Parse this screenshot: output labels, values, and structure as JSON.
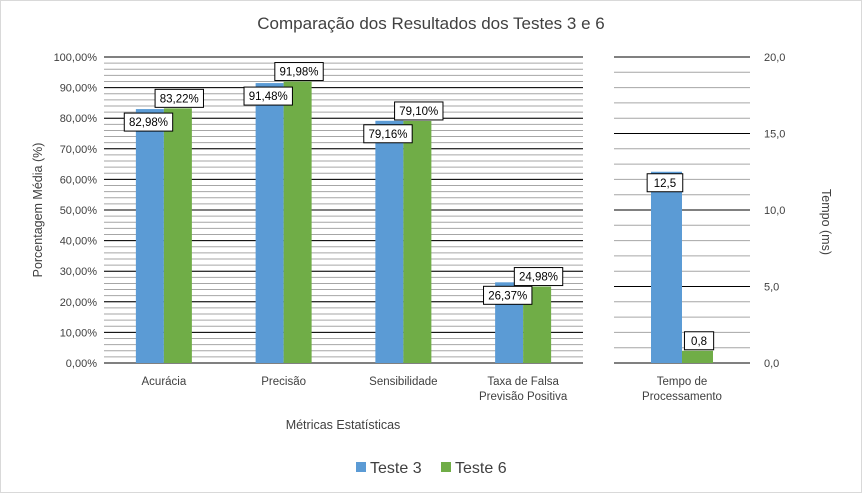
{
  "title": "Comparação dos Resultados dos Testes 3 e 6",
  "legend": [
    {
      "label": "Teste 3",
      "color": "#5b9bd5"
    },
    {
      "label": "Teste 6",
      "color": "#70ad47"
    }
  ],
  "chart_data": [
    {
      "type": "bar",
      "ylabel": "Porcentagem Média (%)",
      "xlabel": "Métricas Estatísticas",
      "ylim": [
        0,
        100
      ],
      "yticks": [
        "0,00%",
        "10,00%",
        "20,00%",
        "30,00%",
        "40,00%",
        "50,00%",
        "60,00%",
        "70,00%",
        "80,00%",
        "90,00%",
        "100,00%"
      ],
      "categories": [
        [
          "Acurácia"
        ],
        [
          "Precisão"
        ],
        [
          "Sensibilidade"
        ],
        [
          "Taxa de Falsa",
          "Previsão Positiva"
        ]
      ],
      "series": [
        {
          "name": "Teste 3",
          "values": [
            82.98,
            91.48,
            79.16,
            26.37
          ],
          "labels": [
            "82,98%",
            "91,48%",
            "79,16%",
            "26,37%"
          ]
        },
        {
          "name": "Teste 6",
          "values": [
            83.22,
            91.98,
            79.1,
            24.98
          ],
          "labels": [
            "83,22%",
            "91,98%",
            "79,10%",
            "24,98%"
          ]
        }
      ],
      "grid": true
    },
    {
      "type": "bar",
      "ylabel": "Tempo (ms)",
      "ylim": [
        0,
        20
      ],
      "yticks": [
        "0,0",
        "5,0",
        "10,0",
        "15,0",
        "20,0"
      ],
      "categories": [
        [
          "Tempo de",
          "Processamento"
        ]
      ],
      "series": [
        {
          "name": "Teste 3",
          "values": [
            12.5
          ],
          "labels": [
            "12,5"
          ]
        },
        {
          "name": "Teste 6",
          "values": [
            0.8
          ],
          "labels": [
            "0,8"
          ]
        }
      ],
      "grid": true
    }
  ]
}
